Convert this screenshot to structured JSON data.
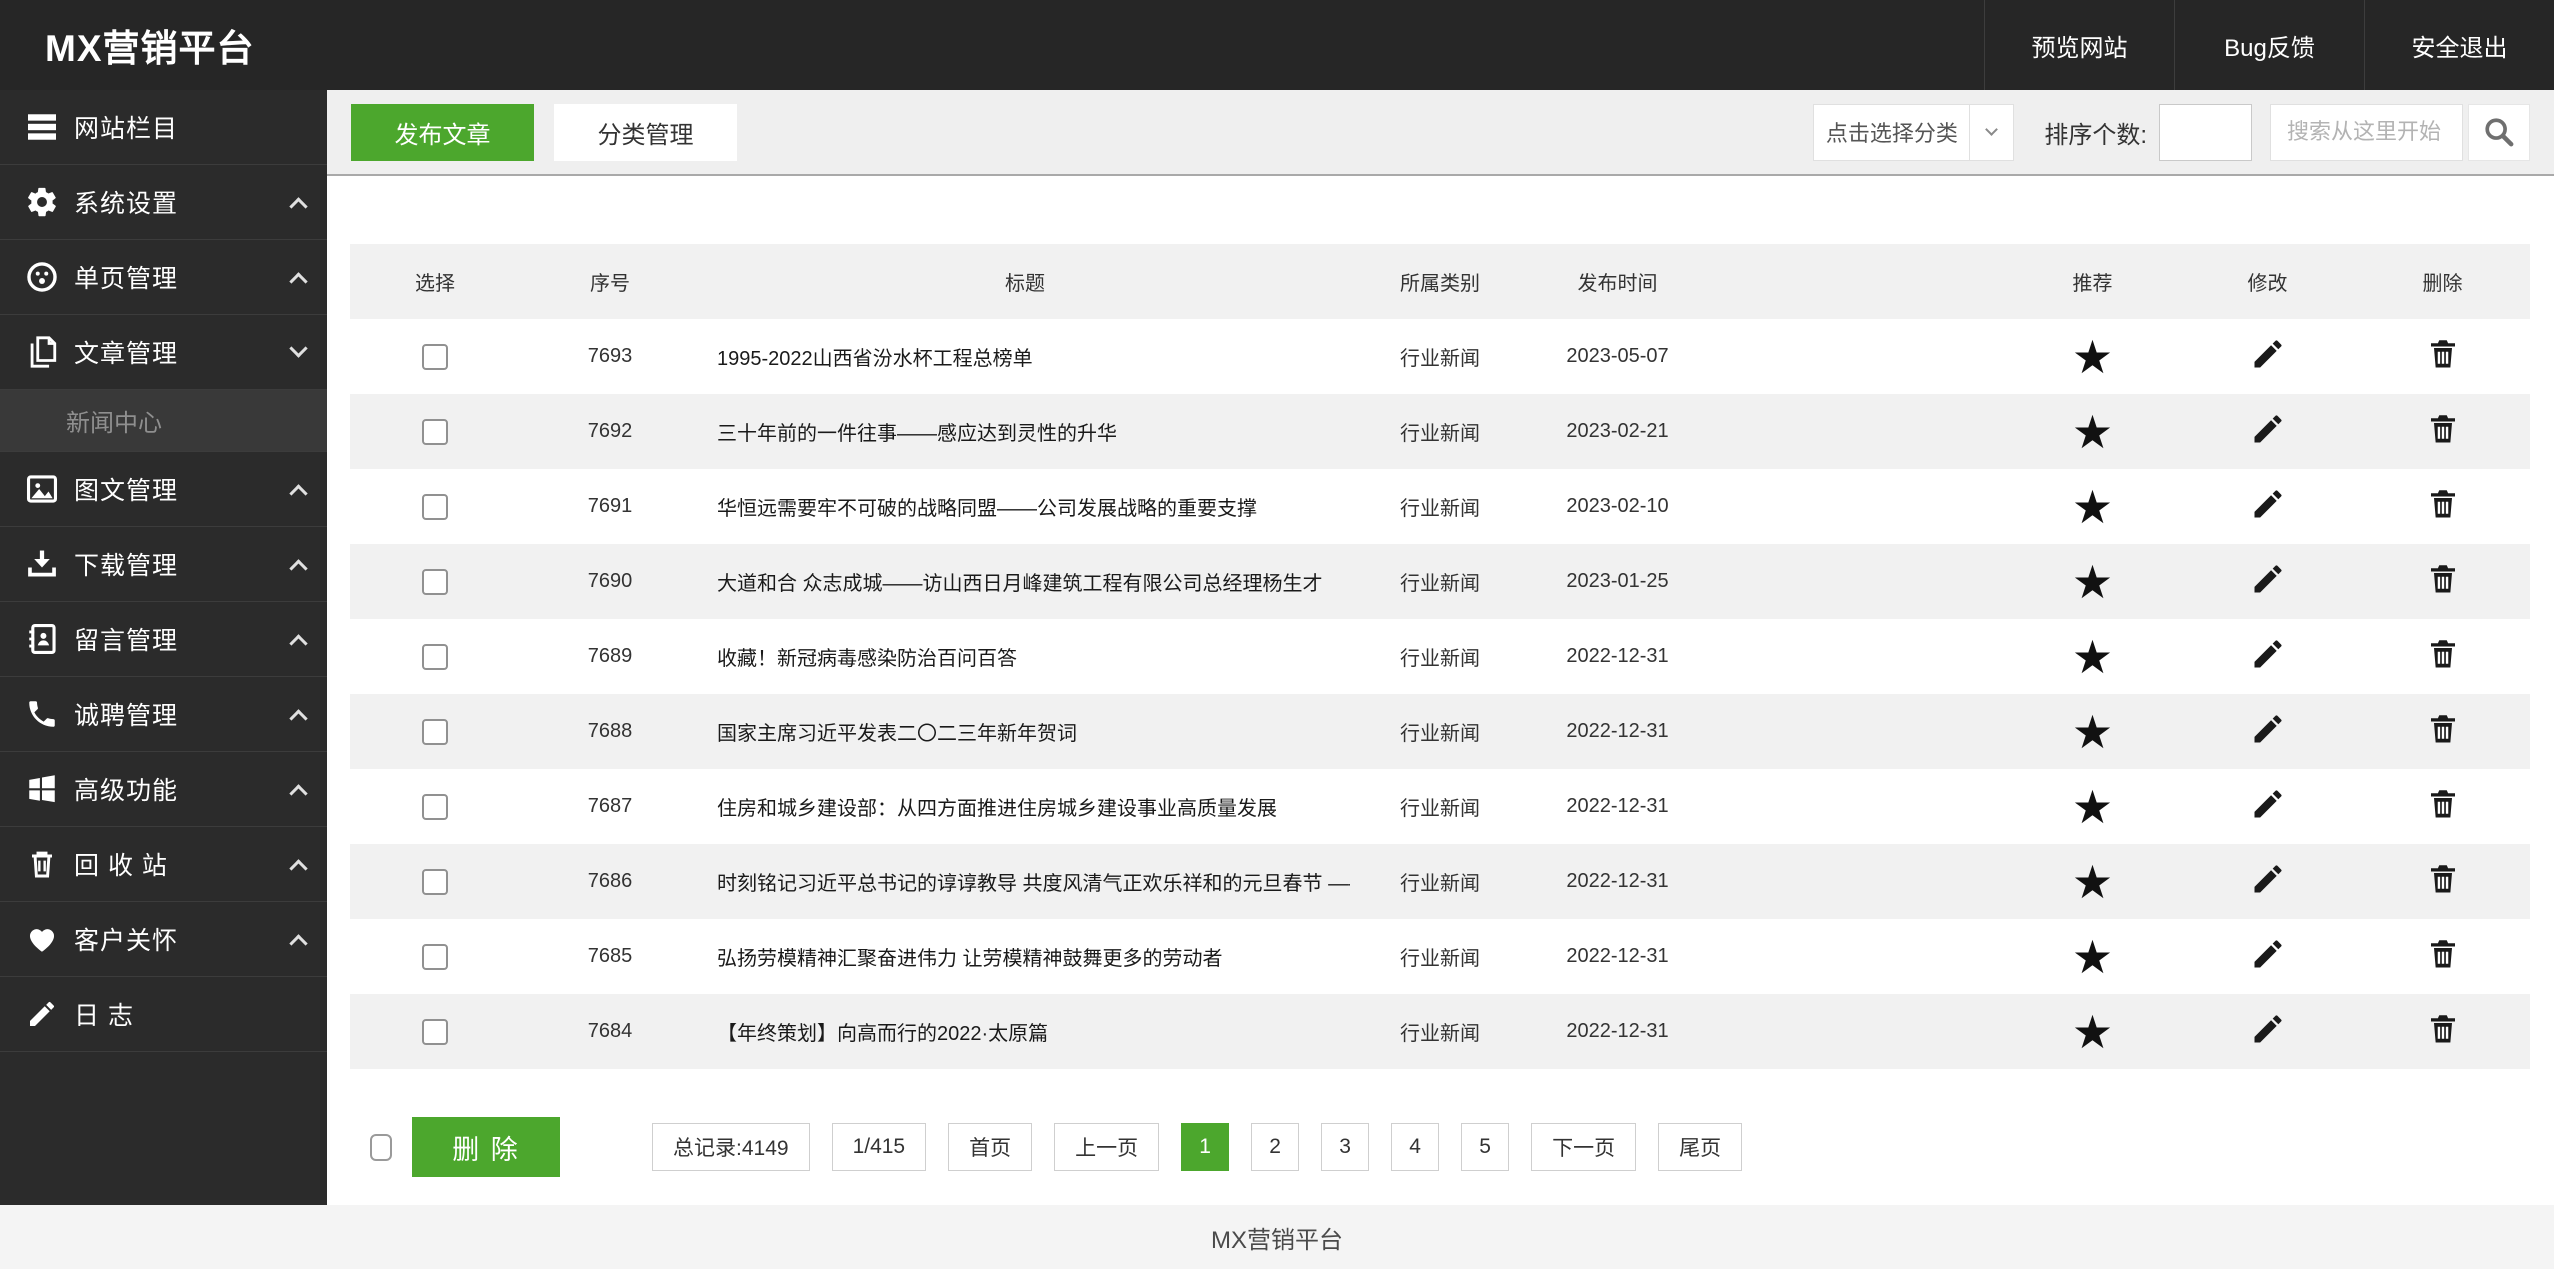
{
  "app": {
    "title": "MX营销平台",
    "footer": "MX营销平台"
  },
  "header": {
    "links": [
      {
        "label": "预览网站"
      },
      {
        "label": "Bug反馈"
      },
      {
        "label": "安全退出"
      }
    ]
  },
  "sidebar": {
    "items": [
      {
        "label": "网站栏目",
        "icon": "menu-icon",
        "caret": ""
      },
      {
        "label": "系统设置",
        "icon": "gear-icon",
        "caret": "up"
      },
      {
        "label": "单页管理",
        "icon": "face-icon",
        "caret": "up"
      },
      {
        "label": "文章管理",
        "icon": "article-icon",
        "caret": "down"
      },
      {
        "label": "图文管理",
        "icon": "image-icon",
        "caret": "up"
      },
      {
        "label": "下载管理",
        "icon": "download-icon",
        "caret": "up"
      },
      {
        "label": "留言管理",
        "icon": "contact-book-icon",
        "caret": "up"
      },
      {
        "label": "诚聘管理",
        "icon": "phone-icon",
        "caret": "up"
      },
      {
        "label": "高级功能",
        "icon": "windows-icon",
        "caret": "up"
      },
      {
        "label": "回 收 站",
        "icon": "trash-icon",
        "caret": "up"
      },
      {
        "label": "客户关怀",
        "icon": "heart-icon",
        "caret": "up"
      },
      {
        "label": "日  志",
        "icon": "pencil-icon",
        "caret": ""
      }
    ],
    "submenu": {
      "label": "新闻中心"
    }
  },
  "toolbar": {
    "tabs": [
      {
        "label": "发布文章",
        "active": true
      },
      {
        "label": "分类管理",
        "active": false
      }
    ],
    "category_select": "点击选择分类",
    "sort_label": "排序个数:",
    "sort_value": "",
    "search_placeholder": "搜索从这里开始",
    "search_icon": "magnifier-icon"
  },
  "table": {
    "headers": [
      "选择",
      "序号",
      "标题",
      "所属类别",
      "发布时间",
      "推荐",
      "修改",
      "删除"
    ],
    "action_icons": {
      "recommend": "star-icon",
      "edit": "pencil-icon",
      "delete": "trash-icon"
    },
    "rows": [
      {
        "id": "7693",
        "title": "1995-2022山西省汾水杯工程总榜单",
        "category": "行业新闻",
        "date": "2023-05-07"
      },
      {
        "id": "7692",
        "title": "三十年前的一件往事——感应达到灵性的升华",
        "category": "行业新闻",
        "date": "2023-02-21"
      },
      {
        "id": "7691",
        "title": "华恒远需要牢不可破的战略同盟——公司发展战略的重要支撑",
        "category": "行业新闻",
        "date": "2023-02-10"
      },
      {
        "id": "7690",
        "title": "大道和合 众志成城——访山西日月峰建筑工程有限公司总经理杨生才",
        "category": "行业新闻",
        "date": "2023-01-25"
      },
      {
        "id": "7689",
        "title": "收藏！新冠病毒感染防治百问百答",
        "category": "行业新闻",
        "date": "2022-12-31"
      },
      {
        "id": "7688",
        "title": "国家主席习近平发表二〇二三年新年贺词",
        "category": "行业新闻",
        "date": "2022-12-31"
      },
      {
        "id": "7687",
        "title": "住房和城乡建设部：从四方面推进住房城乡建设事业高质量发展",
        "category": "行业新闻",
        "date": "2022-12-31"
      },
      {
        "id": "7686",
        "title": "时刻铭记习近平总书记的谆谆教导 共度风清气正欢乐祥和的元旦春节 ——致全市党",
        "category": "行业新闻",
        "date": "2022-12-31"
      },
      {
        "id": "7685",
        "title": "弘扬劳模精神汇聚奋进伟力 让劳模精神鼓舞更多的劳动者",
        "category": "行业新闻",
        "date": "2022-12-31"
      },
      {
        "id": "7684",
        "title": "【年终策划】向高而行的2022·太原篇",
        "category": "行业新闻",
        "date": "2022-12-31"
      }
    ]
  },
  "pagination": {
    "delete_button": "删 除",
    "total": "总记录:4149",
    "page_info": "1/415",
    "first": "首页",
    "prev": "上一页",
    "pages": [
      "1",
      "2",
      "3",
      "4",
      "5"
    ],
    "active_page": "1",
    "next": "下一页",
    "last": "尾页"
  },
  "colors": {
    "accent_green": "#4CA72D",
    "header_bg": "#262626",
    "sidebar_bg": "#2b2b2b"
  }
}
